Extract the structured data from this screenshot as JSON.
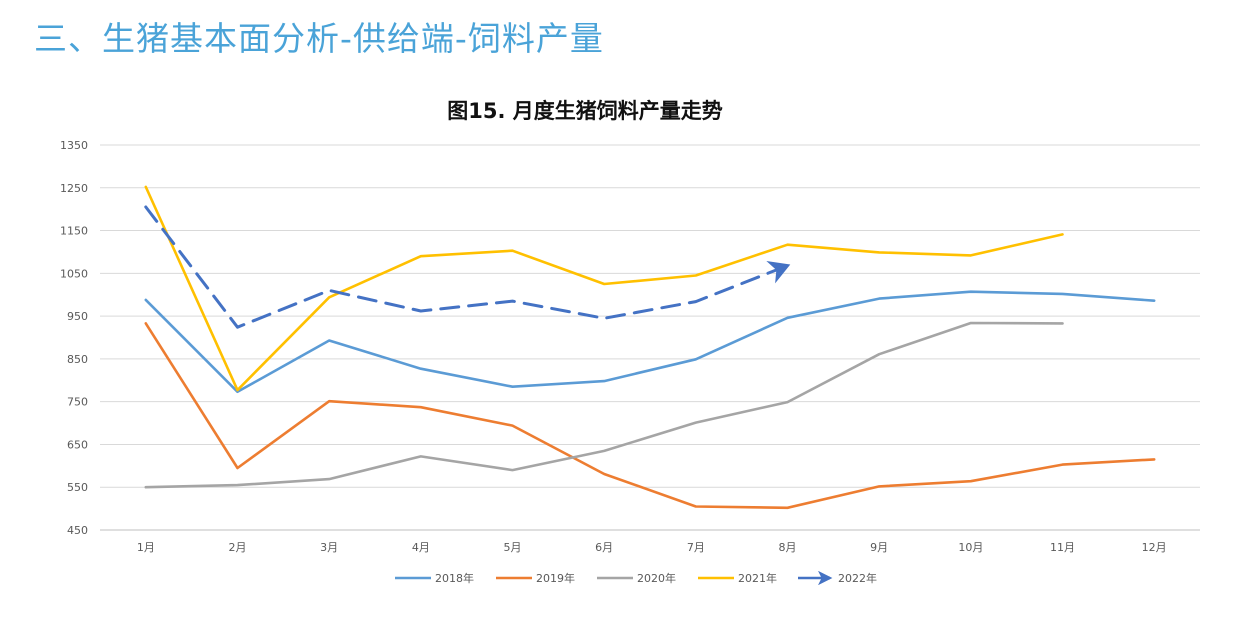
{
  "page": {
    "title": "三、生猪基本面分析-供给端-饲料产量"
  },
  "chart_data": {
    "type": "line",
    "title": "图15. 月度生猪饲料产量走势",
    "xlabel": "",
    "ylabel": "",
    "categories": [
      "1月",
      "2月",
      "3月",
      "4月",
      "5月",
      "6月",
      "7月",
      "8月",
      "9月",
      "10月",
      "11月",
      "12月"
    ],
    "ylim": [
      450,
      1350
    ],
    "yticks": [
      450,
      550,
      650,
      750,
      850,
      950,
      1050,
      1150,
      1250,
      1350
    ],
    "grid": true,
    "legend_position": "bottom",
    "series": [
      {
        "name": "2018年",
        "color": "#5b9bd5",
        "dashed": false,
        "values": [
          988,
          773,
          893,
          827,
          785,
          798,
          849,
          946,
          991,
          1007,
          1002,
          986
        ]
      },
      {
        "name": "2019年",
        "color": "#ed7d31",
        "dashed": false,
        "values": [
          933,
          595,
          751,
          737,
          694,
          581,
          505,
          502,
          552,
          564,
          603,
          615
        ]
      },
      {
        "name": "2020年",
        "color": "#a5a5a5",
        "dashed": false,
        "values": [
          550,
          555,
          569,
          622,
          590,
          635,
          701,
          749,
          861,
          934,
          933,
          null
        ]
      },
      {
        "name": "2021年",
        "color": "#ffc000",
        "dashed": false,
        "values": [
          1252,
          777,
          994,
          1090,
          1103,
          1025,
          1045,
          1117,
          1099,
          1092,
          1141,
          null
        ]
      },
      {
        "name": "2022年",
        "color": "#4472c4",
        "dashed": true,
        "values": [
          1205,
          924,
          1010,
          962,
          985,
          945,
          984,
          1068,
          null,
          null,
          null,
          null
        ]
      }
    ]
  }
}
